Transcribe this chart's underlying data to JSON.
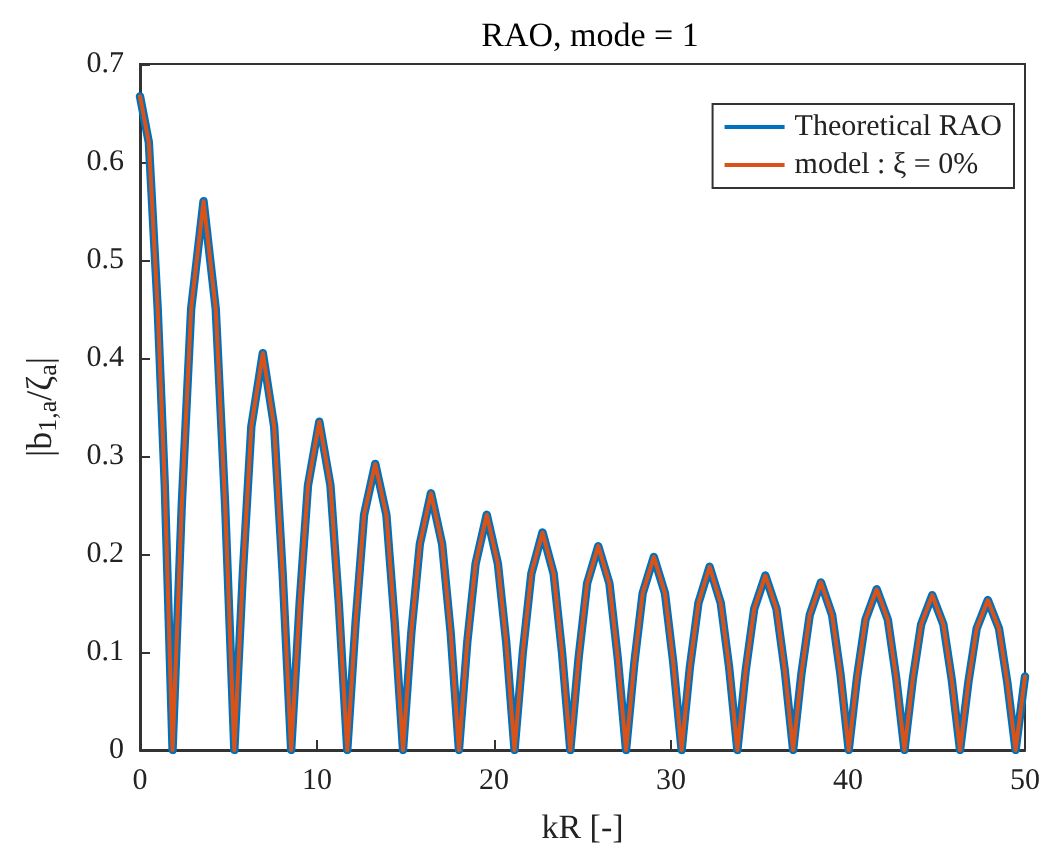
{
  "chart_data": {
    "type": "line",
    "title": "RAO, mode = 1",
    "xlabel": "kR [-]",
    "ylabel": "|b$_{1,a}$/ζ$_{a}$|",
    "x": [
      0,
      0.5,
      1.0,
      1.4,
      1.84,
      2.36,
      2.89,
      3.59,
      4.28,
      4.81,
      5.33,
      5.81,
      6.29,
      6.94,
      7.58,
      8.06,
      8.54,
      9.02,
      9.49,
      10.13,
      10.76,
      11.23,
      11.71,
      12.18,
      12.66,
      13.29,
      13.92,
      14.39,
      14.86,
      15.33,
      15.81,
      16.44,
      17.07,
      17.55,
      18.02,
      18.49,
      18.96,
      19.59,
      20.22,
      20.69,
      21.16,
      21.63,
      22.11,
      22.74,
      23.37,
      23.84,
      24.31,
      24.78,
      25.26,
      25.89,
      26.52,
      26.99,
      27.46,
      27.93,
      28.4,
      29.03,
      29.66,
      30.13,
      30.6,
      31.07,
      31.55,
      32.18,
      32.81,
      33.28,
      33.75,
      34.22,
      34.7,
      35.33,
      35.96,
      36.43,
      36.9,
      37.37,
      37.84,
      38.47,
      39.1,
      39.57,
      40.04,
      40.51,
      40.99,
      41.62,
      42.25,
      42.72,
      43.19,
      43.66,
      44.13,
      44.76,
      45.39,
      45.86,
      46.33,
      46.8,
      47.27,
      47.9,
      48.53,
      49.0,
      49.47,
      50
    ],
    "series": [
      {
        "name": "Theoretical RAO",
        "color": "#0072bd",
        "values": [
          0.667,
          0.62,
          0.45,
          0.27,
          0,
          0.25,
          0.45,
          0.56,
          0.45,
          0.25,
          0,
          0.18,
          0.33,
          0.405,
          0.33,
          0.18,
          0,
          0.15,
          0.27,
          0.335,
          0.27,
          0.15,
          0,
          0.13,
          0.24,
          0.292,
          0.24,
          0.13,
          0,
          0.12,
          0.21,
          0.262,
          0.21,
          0.12,
          0,
          0.11,
          0.19,
          0.24,
          0.19,
          0.11,
          0,
          0.1,
          0.18,
          0.222,
          0.18,
          0.1,
          0,
          0.094,
          0.17,
          0.208,
          0.17,
          0.094,
          0,
          0.089,
          0.16,
          0.197,
          0.16,
          0.089,
          0,
          0.085,
          0.15,
          0.187,
          0.15,
          0.085,
          0,
          0.081,
          0.144,
          0.178,
          0.144,
          0.081,
          0,
          0.078,
          0.138,
          0.171,
          0.138,
          0.078,
          0,
          0.074,
          0.133,
          0.164,
          0.133,
          0.074,
          0,
          0.072,
          0.128,
          0.158,
          0.128,
          0.072,
          0,
          0.069,
          0.124,
          0.153,
          0.124,
          0.069,
          0,
          0.075
        ]
      },
      {
        "name": "model : ξ = 0%",
        "color": "#d95319",
        "values": [
          0.667,
          0.62,
          0.45,
          0.27,
          0,
          0.25,
          0.45,
          0.56,
          0.45,
          0.25,
          0,
          0.18,
          0.33,
          0.405,
          0.33,
          0.18,
          0,
          0.15,
          0.27,
          0.335,
          0.27,
          0.15,
          0,
          0.13,
          0.24,
          0.292,
          0.24,
          0.13,
          0,
          0.12,
          0.21,
          0.262,
          0.21,
          0.12,
          0,
          0.11,
          0.19,
          0.24,
          0.19,
          0.11,
          0,
          0.1,
          0.18,
          0.222,
          0.18,
          0.1,
          0,
          0.094,
          0.17,
          0.208,
          0.17,
          0.094,
          0,
          0.089,
          0.16,
          0.197,
          0.16,
          0.089,
          0,
          0.085,
          0.15,
          0.187,
          0.15,
          0.085,
          0,
          0.081,
          0.144,
          0.178,
          0.144,
          0.081,
          0,
          0.078,
          0.138,
          0.171,
          0.138,
          0.078,
          0,
          0.074,
          0.133,
          0.164,
          0.133,
          0.074,
          0,
          0.072,
          0.128,
          0.158,
          0.128,
          0.072,
          0,
          0.069,
          0.124,
          0.153,
          0.124,
          0.069,
          0,
          0.075
        ]
      }
    ],
    "xlim": [
      0,
      50
    ],
    "xticks": [
      0,
      10,
      20,
      30,
      40,
      50
    ],
    "ylim": [
      0,
      0.7
    ],
    "yticks": [
      0,
      0.1,
      0.2,
      0.3,
      0.4,
      0.5,
      0.6,
      0.7
    ],
    "grid": false,
    "legend": "top right",
    "marker": "none",
    "line_style": "solid"
  }
}
